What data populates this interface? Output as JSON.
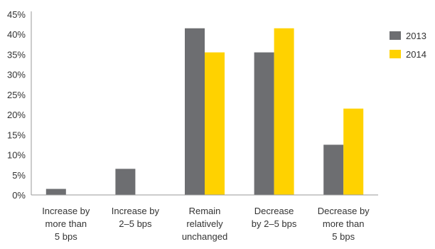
{
  "chart_data": {
    "type": "bar",
    "title": "",
    "xlabel": "",
    "ylabel": "",
    "ylim": [
      0,
      45
    ],
    "yticks": [
      "0%",
      "5%",
      "10%",
      "15%",
      "20%",
      "25%",
      "30%",
      "35%",
      "40%",
      "45%"
    ],
    "ytick_values": [
      0,
      5,
      10,
      15,
      20,
      25,
      30,
      35,
      40,
      45
    ],
    "grid": false,
    "legend_position": "right",
    "categories": [
      [
        "Increase by",
        "more than",
        "5 bps"
      ],
      [
        "Increase by",
        "2–5 bps"
      ],
      [
        "Remain",
        "relatively",
        "unchanged"
      ],
      [
        "Decrease",
        "by 2–5 bps"
      ],
      [
        "Decrease by",
        "more than",
        "5 bps"
      ]
    ],
    "series": [
      {
        "name": "2013",
        "color": "#6d6e71",
        "values": [
          1.5,
          6.5,
          41.5,
          35.5,
          12.5
        ]
      },
      {
        "name": "2014",
        "color": "#ffd200",
        "values": [
          0,
          0,
          35.5,
          41.5,
          21.5
        ]
      }
    ]
  }
}
